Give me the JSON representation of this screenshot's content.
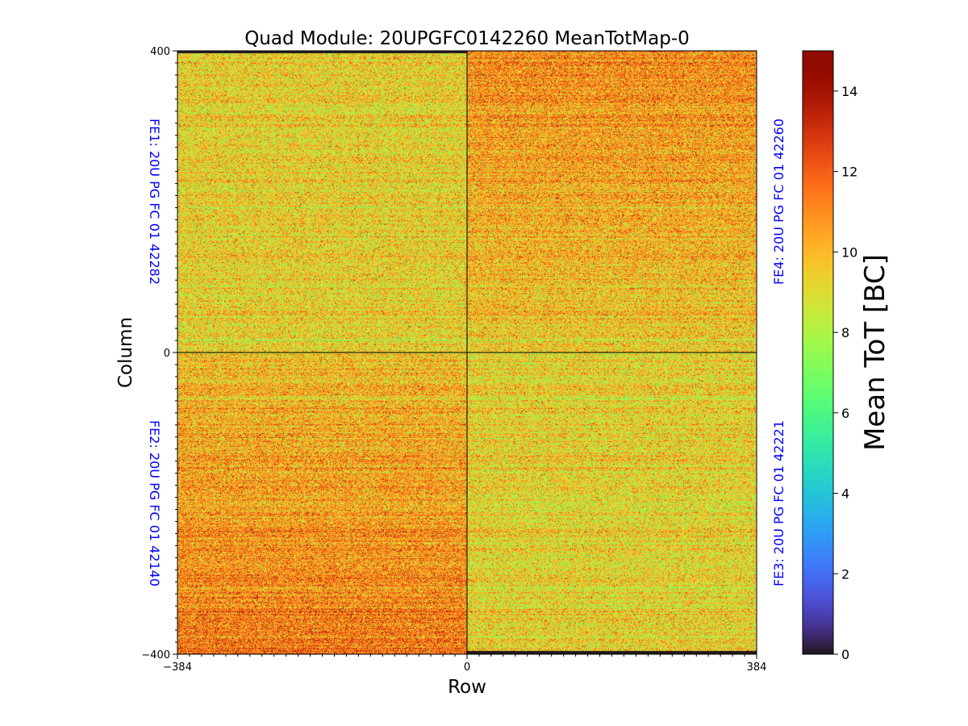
{
  "chart_data": {
    "type": "heatmap",
    "title": "Quad Module: 20UPGFC0142260 MeanTotMap-0",
    "xlabel": "Row",
    "ylabel": "Column",
    "xlim": [
      -384,
      384
    ],
    "ylim": [
      -400,
      400
    ],
    "x_ticks": [
      "−384",
      "0",
      "384"
    ],
    "y_ticks": [
      "400",
      "0",
      "−400"
    ],
    "colorbar": {
      "label": "Mean ToT [BC]",
      "range": [
        0,
        15
      ],
      "ticks": [
        "0",
        "2",
        "4",
        "6",
        "8",
        "10",
        "12",
        "14"
      ],
      "colormap": "turbo"
    },
    "front_ends": [
      {
        "id": "FE1",
        "label": "FE1: 20U PG FC 01 42282",
        "quadrant": "top-left",
        "x_range": [
          -384,
          0
        ],
        "y_range": [
          0,
          400
        ],
        "mean_tot": 9.4,
        "typical_range": [
          7,
          14
        ],
        "gradient": "uniform"
      },
      {
        "id": "FE4",
        "label": "FE4: 20U PG FC 01 42260",
        "quadrant": "top-right",
        "x_range": [
          0,
          384
        ],
        "y_range": [
          0,
          400
        ],
        "mean_tot": 10.3,
        "typical_range": [
          7,
          14
        ],
        "gradient": "higher-toward-top"
      },
      {
        "id": "FE2",
        "label": "FE2: 20U PG FC 01 42140",
        "quadrant": "bottom-left",
        "x_range": [
          -384,
          0
        ],
        "y_range": [
          -400,
          0
        ],
        "mean_tot": 10.6,
        "typical_range": [
          7,
          14
        ],
        "gradient": "higher-toward-bottom"
      },
      {
        "id": "FE3",
        "label": "FE3: 20U PG FC 01 42221",
        "quadrant": "bottom-right",
        "x_range": [
          0,
          384
        ],
        "y_range": [
          -400,
          0
        ],
        "mean_tot": 9.3,
        "typical_range": [
          7,
          13
        ],
        "gradient": "uniform"
      }
    ],
    "dead_regions": [
      {
        "x_range": [
          -384,
          0
        ],
        "y_range": [
          397,
          400
        ],
        "value": 0
      },
      {
        "x_range": [
          0,
          384
        ],
        "y_range": [
          -400,
          -396
        ],
        "value": 0
      }
    ],
    "divider_lines": {
      "x": 0,
      "y": 0,
      "color": "#000000"
    }
  }
}
